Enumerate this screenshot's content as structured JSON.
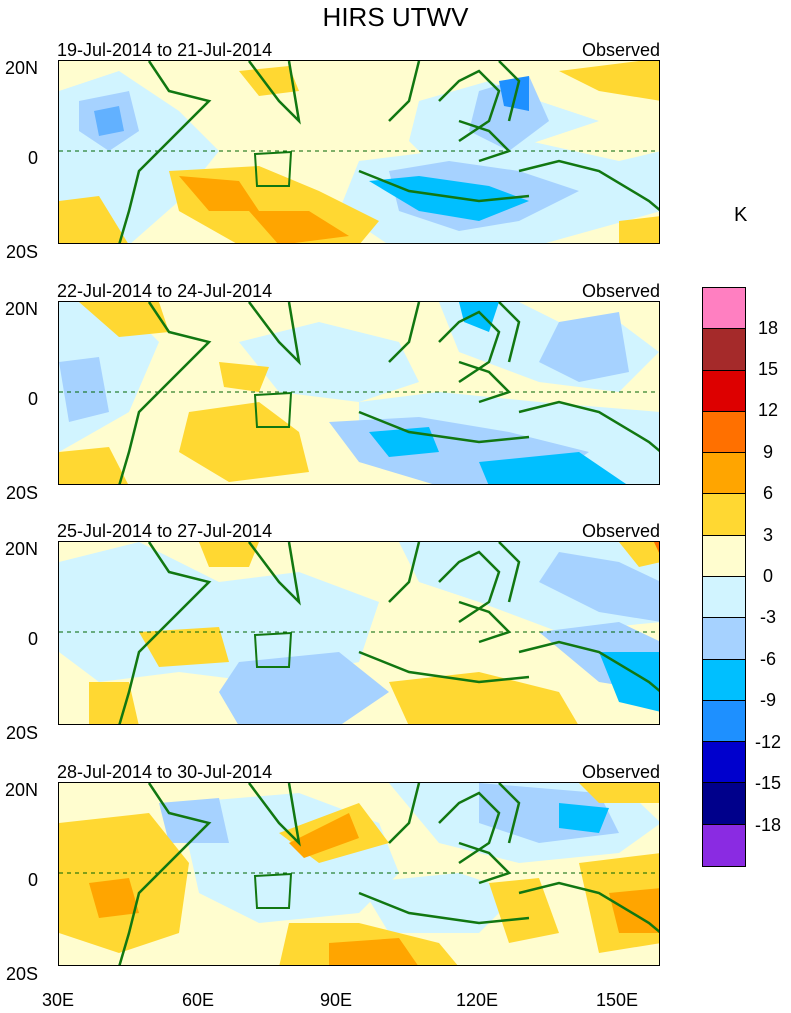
{
  "title": "HIRS UTWV",
  "unit": "K",
  "x_axis_labels": [
    "30E",
    "60E",
    "90E",
    "120E",
    "150E"
  ],
  "y_axis_labels": [
    "20N",
    "0",
    "20S"
  ],
  "panels": [
    {
      "date_range": "19-Jul-2014 to 21-Jul-2014",
      "label": "Observed"
    },
    {
      "date_range": "22-Jul-2014 to 24-Jul-2014",
      "label": "Observed"
    },
    {
      "date_range": "25-Jul-2014 to 27-Jul-2014",
      "label": "Observed"
    },
    {
      "date_range": "28-Jul-2014 to 30-Jul-2014",
      "label": "Observed"
    }
  ],
  "colorbar": {
    "labels": [
      "18",
      "15",
      "12",
      "9",
      "6",
      "3",
      "0",
      "-3",
      "-6",
      "-9",
      "-12",
      "-15",
      "-18"
    ],
    "colors": [
      "#ff7fc1",
      "#a52a2a",
      "#dd0000",
      "#ff7000",
      "#ffa500",
      "#ffd832",
      "#fffdcf",
      "#d1f4ff",
      "#a6d2ff",
      "#00bfff",
      "#1e90ff",
      "#0000cd",
      "#00008b",
      "#8a2be2"
    ]
  }
}
